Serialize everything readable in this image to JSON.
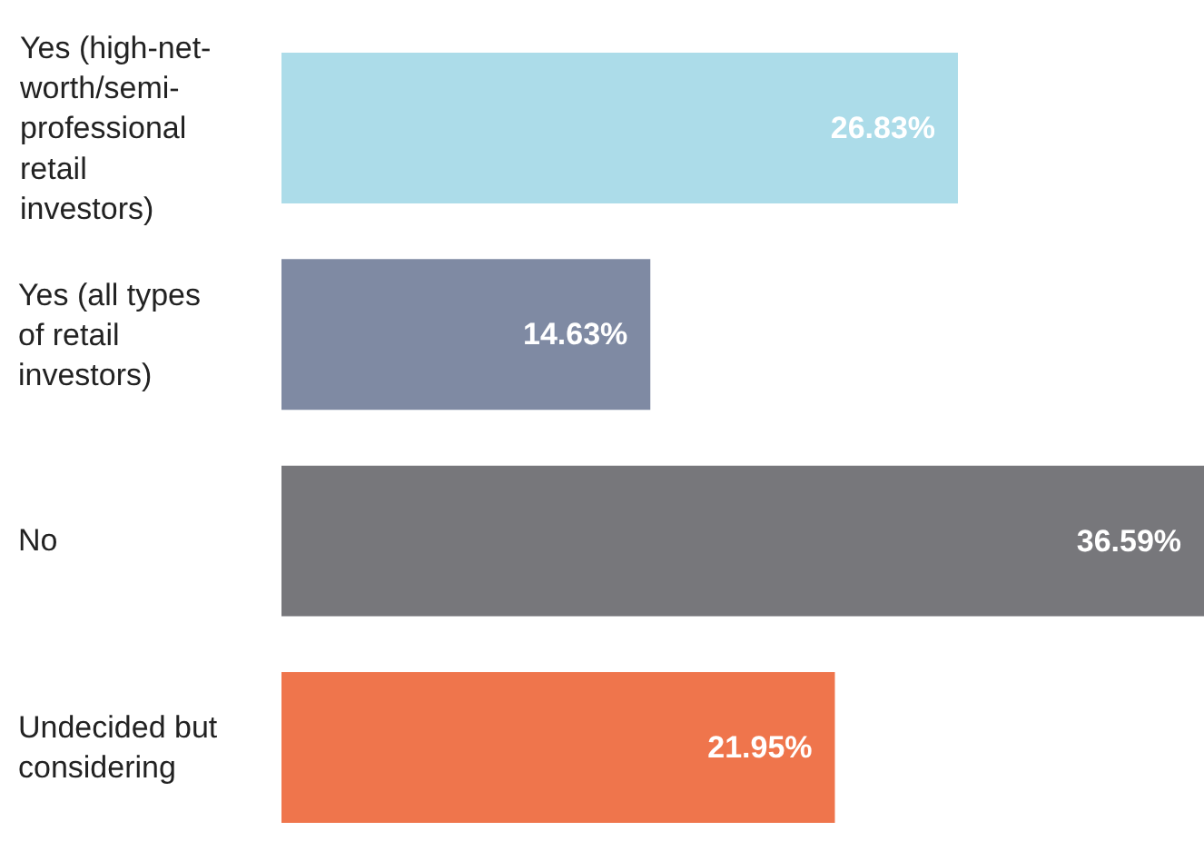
{
  "chart_data": {
    "type": "bar",
    "orientation": "horizontal",
    "categories": [
      "Yes (high-net-worth/semi-professional retail investors)",
      "Yes (all types of retail investors)",
      "No",
      "Undecided but considering"
    ],
    "values": [
      26.83,
      14.63,
      36.59,
      21.95
    ],
    "colors": [
      "#acdce9",
      "#7f8aa3",
      "#77777b",
      "#ef754c"
    ],
    "value_labels": [
      "26.83%",
      "14.63%",
      "36.59%",
      "21.95%"
    ],
    "xlim": [
      0,
      36.59
    ],
    "tick_labels": false
  }
}
